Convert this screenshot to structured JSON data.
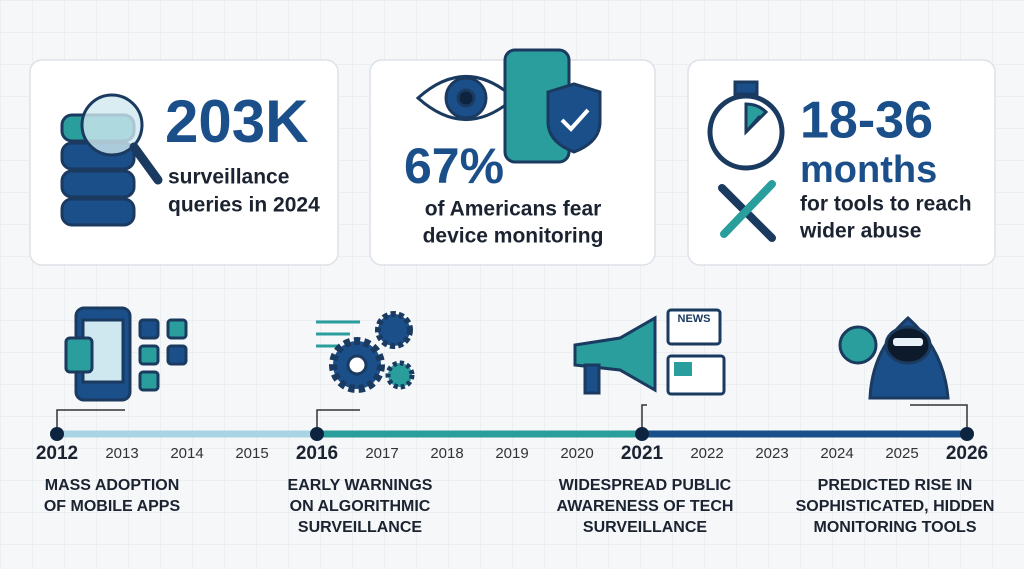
{
  "cards": [
    {
      "value": "203K",
      "lines": [
        "surveillance",
        "queries in 2024"
      ]
    },
    {
      "value": "67%",
      "lines": [
        "of Americans fear",
        "device monitoring"
      ]
    },
    {
      "value": "18-36",
      "lines": [
        "months",
        "for tools to reach",
        "wider abuse"
      ]
    }
  ],
  "timeline": {
    "years": [
      "2012",
      "2013",
      "2014",
      "2015",
      "2016",
      "2017",
      "2018",
      "2019",
      "2020",
      "2021",
      "2022",
      "2023",
      "2024",
      "2025",
      "2026"
    ],
    "milestones": [
      {
        "lines": [
          "MASS ADOPTION",
          "OF MOBILE APPS"
        ]
      },
      {
        "lines": [
          "EARLY WARNINGS",
          "ON ALGORITHMIC",
          "SURVEILLANCE"
        ]
      },
      {
        "lines": [
          "WIDESPREAD PUBLIC",
          "AWARENESS OF TECH",
          "SURVEILLANCE"
        ]
      },
      {
        "lines": [
          "PREDICTED RISE IN",
          "SOPHISTICATED, HIDDEN",
          "MONITORING TOOLS"
        ]
      }
    ],
    "icon_text": "NEWS"
  }
}
